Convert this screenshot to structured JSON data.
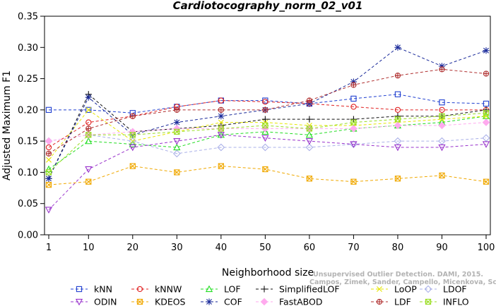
{
  "chart_data": {
    "type": "line",
    "title": "Cardiotocography_norm_02_v01",
    "xlabel": "Neighborhood size",
    "ylabel": "Adjusted Maximum F1",
    "xlim": [
      1,
      100
    ],
    "ylim": [
      0,
      0.35
    ],
    "xticks": [
      1,
      10,
      20,
      30,
      40,
      50,
      60,
      70,
      80,
      90,
      100
    ],
    "yticks": [
      "0.00",
      "0.05",
      "0.10",
      "0.15",
      "0.20",
      "0.25",
      "0.30",
      "0.35"
    ],
    "grid": false,
    "legend_position": "bottom",
    "x": [
      1,
      10,
      20,
      30,
      40,
      50,
      60,
      70,
      80,
      90,
      100
    ],
    "series": [
      {
        "name": "kNN",
        "color": "#1f3fd0",
        "marker": "square",
        "values": [
          0.2,
          0.2,
          0.195,
          0.205,
          0.215,
          0.215,
          0.21,
          0.218,
          0.225,
          0.212,
          0.21
        ]
      },
      {
        "name": "kNNW",
        "color": "#e02020",
        "marker": "circle",
        "values": [
          0.14,
          0.18,
          0.19,
          0.205,
          0.215,
          0.213,
          0.21,
          0.205,
          0.2,
          0.2,
          0.2
        ]
      },
      {
        "name": "LOF",
        "color": "#22dd22",
        "marker": "triangle-up",
        "values": [
          0.105,
          0.15,
          0.145,
          0.14,
          0.16,
          0.165,
          0.16,
          0.17,
          0.175,
          0.18,
          0.19
        ]
      },
      {
        "name": "SimplifiedLOF",
        "color": "#111111",
        "marker": "plus",
        "values": [
          0.09,
          0.225,
          0.165,
          0.17,
          0.175,
          0.185,
          0.185,
          0.185,
          0.19,
          0.19,
          0.2
        ]
      },
      {
        "name": "LoOP",
        "color": "#e6e600",
        "marker": "cross",
        "values": [
          0.12,
          0.2,
          0.15,
          0.165,
          0.18,
          0.18,
          0.175,
          0.175,
          0.18,
          0.185,
          0.19
        ]
      },
      {
        "name": "LDOF",
        "color": "#aab0e8",
        "marker": "diamond",
        "values": [
          0.15,
          0.16,
          0.15,
          0.13,
          0.14,
          0.14,
          0.14,
          0.145,
          0.15,
          0.15,
          0.155
        ]
      },
      {
        "name": "ODIN",
        "color": "#9933cc",
        "marker": "triangle-down",
        "values": [
          0.04,
          0.105,
          0.14,
          0.15,
          0.16,
          0.155,
          0.15,
          0.145,
          0.14,
          0.14,
          0.145
        ]
      },
      {
        "name": "KDEOS",
        "color": "#f0a800",
        "marker": "square-x",
        "values": [
          0.08,
          0.085,
          0.11,
          0.1,
          0.11,
          0.105,
          0.09,
          0.085,
          0.09,
          0.095,
          0.085
        ]
      },
      {
        "name": "COF",
        "color": "#1a2a9a",
        "marker": "star",
        "values": [
          0.09,
          0.22,
          0.16,
          0.18,
          0.19,
          0.2,
          0.21,
          0.245,
          0.3,
          0.27,
          0.295
        ]
      },
      {
        "name": "FastABOD",
        "color": "#ffaaee",
        "marker": "diamond-filled",
        "values": [
          0.15,
          0.16,
          0.165,
          0.17,
          0.17,
          0.17,
          0.17,
          0.17,
          0.175,
          0.175,
          0.18
        ]
      },
      {
        "name": "LDF",
        "color": "#b03030",
        "marker": "circle-plus",
        "values": [
          0.13,
          0.17,
          0.19,
          0.2,
          0.2,
          0.2,
          0.215,
          0.24,
          0.255,
          0.265,
          0.258
        ]
      },
      {
        "name": "INFLO",
        "color": "#99dd22",
        "marker": "square-x",
        "values": [
          0.1,
          0.16,
          0.16,
          0.165,
          0.17,
          0.175,
          0.17,
          0.18,
          0.185,
          0.19,
          0.195
        ]
      }
    ]
  },
  "watermark": {
    "line1": "Unsupervised Outlier Detection. DAMI, 2015.",
    "line2": "Campos, Zimek, Sander, Campello, Micenkova, Schubert, Assent, Houle"
  }
}
